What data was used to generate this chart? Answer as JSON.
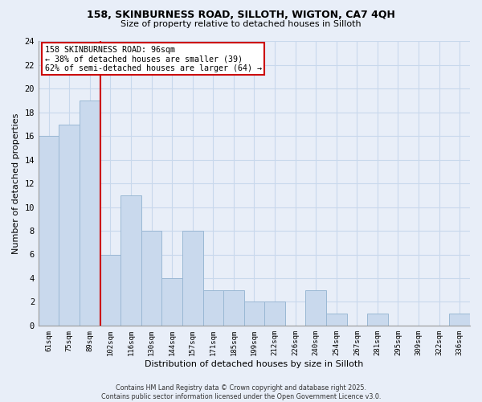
{
  "title_line1": "158, SKINBURNESS ROAD, SILLOTH, WIGTON, CA7 4QH",
  "title_line2": "Size of property relative to detached houses in Silloth",
  "xlabel": "Distribution of detached houses by size in Silloth",
  "ylabel": "Number of detached properties",
  "bar_labels": [
    "61sqm",
    "75sqm",
    "89sqm",
    "102sqm",
    "116sqm",
    "130sqm",
    "144sqm",
    "157sqm",
    "171sqm",
    "185sqm",
    "199sqm",
    "212sqm",
    "226sqm",
    "240sqm",
    "254sqm",
    "267sqm",
    "281sqm",
    "295sqm",
    "309sqm",
    "322sqm",
    "336sqm"
  ],
  "bar_values": [
    16,
    17,
    19,
    6,
    11,
    8,
    4,
    8,
    3,
    3,
    2,
    2,
    0,
    3,
    1,
    0,
    1,
    0,
    0,
    0,
    1
  ],
  "bar_color": "#c9d9ed",
  "bar_edge_color": "#9ab8d4",
  "grid_color": "#c8d8ec",
  "annotation_box_text": "158 SKINBURNESS ROAD: 96sqm\n← 38% of detached houses are smaller (39)\n62% of semi-detached houses are larger (64) →",
  "vline_x_index": 2.5,
  "vline_color": "#cc0000",
  "ylim": [
    0,
    24
  ],
  "yticks": [
    0,
    2,
    4,
    6,
    8,
    10,
    12,
    14,
    16,
    18,
    20,
    22,
    24
  ],
  "footer_text": "Contains HM Land Registry data © Crown copyright and database right 2025.\nContains public sector information licensed under the Open Government Licence v3.0.",
  "background_color": "#e8eef8",
  "plot_background_color": "#e8eef8"
}
